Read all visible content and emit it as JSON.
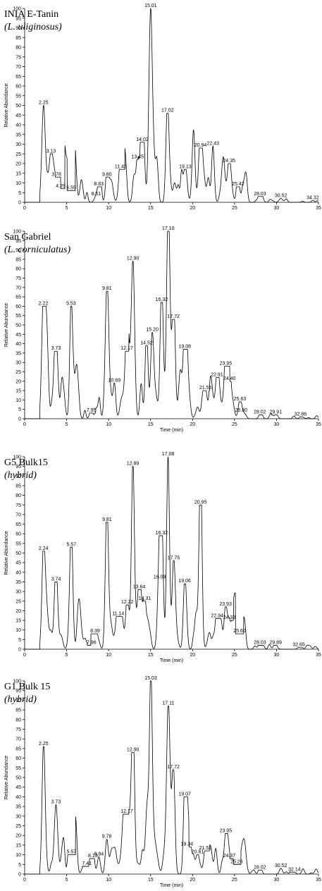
{
  "chart_data": [
    {
      "type": "line",
      "title": "INIA E-Tanin",
      "subtitle": "(L. uliginosus)",
      "ylabel": "Relative Abundance",
      "xlabel": "",
      "xlim": [
        0,
        35
      ],
      "ylim": [
        0,
        100
      ],
      "xticks": [
        "0",
        "5",
        "10",
        "15",
        "20",
        "25",
        "30",
        "35"
      ],
      "yticks": [
        "0",
        "5",
        "10",
        "15",
        "20",
        "25",
        "30",
        "35",
        "40",
        "45",
        "50",
        "55",
        "60",
        "65",
        "70",
        "75",
        "80",
        "85",
        "90",
        "95",
        "100"
      ],
      "peaks": [
        {
          "x": 2.25,
          "y": 50,
          "label": "2.25"
        },
        {
          "x": 3.13,
          "y": 25,
          "label": "3.13"
        },
        {
          "x": 3.78,
          "y": 13,
          "label": "3.78"
        },
        {
          "x": 4.29,
          "y": 7,
          "label": "4.29"
        },
        {
          "x": 5.55,
          "y": 6,
          "label": "5.55"
        },
        {
          "x": 8.51,
          "y": 3,
          "label": "8.51"
        },
        {
          "x": 8.83,
          "y": 8,
          "label": "8.83"
        },
        {
          "x": 9.8,
          "y": 13,
          "label": "9.80"
        },
        {
          "x": 11.45,
          "y": 17,
          "label": "11.45"
        },
        {
          "x": 13.45,
          "y": 22,
          "label": "13.45"
        },
        {
          "x": 14.02,
          "y": 31,
          "label": "14.02"
        },
        {
          "x": 15.01,
          "y": 100,
          "label": "15.01"
        },
        {
          "x": 17.02,
          "y": 46,
          "label": "17.02"
        },
        {
          "x": 19.13,
          "y": 17,
          "label": "19.13"
        },
        {
          "x": 20.94,
          "y": 28,
          "label": "20.94"
        },
        {
          "x": 22.43,
          "y": 29,
          "label": "22.43"
        },
        {
          "x": 24.35,
          "y": 20,
          "label": "24.35"
        },
        {
          "x": 25.42,
          "y": 8,
          "label": "25.42"
        },
        {
          "x": 28.03,
          "y": 3,
          "label": "28.03"
        },
        {
          "x": 30.52,
          "y": 2,
          "label": "30.52"
        },
        {
          "x": 34.32,
          "y": 1,
          "label": "34.32"
        }
      ]
    },
    {
      "type": "line",
      "title": "San Gabriel",
      "subtitle": "(L. corniculatus)",
      "ylabel": "Relative Abundance",
      "xlabel": "Time (min)",
      "xlim": [
        0,
        35
      ],
      "ylim": [
        0,
        100
      ],
      "xticks": [
        "0",
        "5",
        "10",
        "15",
        "20",
        "25",
        "30",
        "35"
      ],
      "yticks": [
        "0",
        "5",
        "10",
        "15",
        "20",
        "25",
        "30",
        "35",
        "40",
        "45",
        "50",
        "55",
        "60",
        "65",
        "70",
        "75",
        "80",
        "85",
        "90",
        "95",
        "100"
      ],
      "peaks": [
        {
          "x": 2.22,
          "y": 60,
          "label": "2.22"
        },
        {
          "x": 3.73,
          "y": 36,
          "label": "3.73"
        },
        {
          "x": 5.53,
          "y": 60,
          "label": "5.53"
        },
        {
          "x": 7.95,
          "y": 3,
          "label": "7.95"
        },
        {
          "x": 9.81,
          "y": 68,
          "label": "9.81"
        },
        {
          "x": 10.69,
          "y": 19,
          "label": "10.69"
        },
        {
          "x": 12.17,
          "y": 36,
          "label": "12.17"
        },
        {
          "x": 12.9,
          "y": 84,
          "label": "12.90"
        },
        {
          "x": 14.52,
          "y": 39,
          "label": "14.52"
        },
        {
          "x": 15.2,
          "y": 46,
          "label": "15.20"
        },
        {
          "x": 16.32,
          "y": 62,
          "label": "16.32"
        },
        {
          "x": 17.1,
          "y": 100,
          "label": "17.10"
        },
        {
          "x": 17.72,
          "y": 53,
          "label": "17.72"
        },
        {
          "x": 19.08,
          "y": 37,
          "label": "19.08"
        },
        {
          "x": 21.55,
          "y": 15,
          "label": "21.55"
        },
        {
          "x": 22.91,
          "y": 22,
          "label": "22.91"
        },
        {
          "x": 23.95,
          "y": 28,
          "label": "23.95"
        },
        {
          "x": 24.4,
          "y": 20,
          "label": "24.40"
        },
        {
          "x": 25.63,
          "y": 9,
          "label": "25.63"
        },
        {
          "x": 25.8,
          "y": 3,
          "label": "25.80"
        },
        {
          "x": 28.02,
          "y": 2,
          "label": "28.02"
        },
        {
          "x": 29.91,
          "y": 2,
          "label": "29.91"
        },
        {
          "x": 32.86,
          "y": 1,
          "label": "32.86"
        }
      ]
    },
    {
      "type": "line",
      "title": "G5 Bulk15",
      "subtitle": "(hybrid)",
      "ylabel": "Relative Abundance",
      "xlabel": "Time (min)",
      "xlim": [
        0,
        35
      ],
      "ylim": [
        0,
        100
      ],
      "xticks": [
        "0",
        "5",
        "10",
        "15",
        "20",
        "25",
        "30",
        "35"
      ],
      "yticks": [
        "0",
        "5",
        "10",
        "15",
        "20",
        "25",
        "30",
        "35",
        "40",
        "45",
        "50",
        "55",
        "60",
        "65",
        "70",
        "75",
        "80",
        "85",
        "90",
        "95",
        "100"
      ],
      "peaks": [
        {
          "x": 2.24,
          "y": 51,
          "label": "2.24"
        },
        {
          "x": 3.74,
          "y": 35,
          "label": "3.74"
        },
        {
          "x": 5.57,
          "y": 53,
          "label": "5.57"
        },
        {
          "x": 7.96,
          "y": 2,
          "label": "7.96"
        },
        {
          "x": 8.39,
          "y": 8,
          "label": "8.39"
        },
        {
          "x": 9.81,
          "y": 66,
          "label": "9.81"
        },
        {
          "x": 11.14,
          "y": 17,
          "label": "11.14"
        },
        {
          "x": 12.22,
          "y": 23,
          "label": "12.22"
        },
        {
          "x": 12.89,
          "y": 95,
          "label": "12.89"
        },
        {
          "x": 13.64,
          "y": 31,
          "label": "13.64"
        },
        {
          "x": 14.31,
          "y": 25,
          "label": "14.31"
        },
        {
          "x": 16.09,
          "y": 36,
          "label": "16.09"
        },
        {
          "x": 16.32,
          "y": 59,
          "label": "16.32"
        },
        {
          "x": 17.08,
          "y": 100,
          "label": "17.08"
        },
        {
          "x": 17.75,
          "y": 46,
          "label": "17.75"
        },
        {
          "x": 19.06,
          "y": 34,
          "label": "19.06"
        },
        {
          "x": 20.95,
          "y": 75,
          "label": "20.95"
        },
        {
          "x": 22.94,
          "y": 16,
          "label": "22.94"
        },
        {
          "x": 23.93,
          "y": 22,
          "label": "23.93"
        },
        {
          "x": 24.38,
          "y": 15,
          "label": "24.38"
        },
        {
          "x": 25.6,
          "y": 8,
          "label": "25.60"
        },
        {
          "x": 28.03,
          "y": 2,
          "label": "28.03"
        },
        {
          "x": 29.89,
          "y": 2,
          "label": "29.89"
        },
        {
          "x": 32.65,
          "y": 1,
          "label": "32.65"
        }
      ]
    },
    {
      "type": "line",
      "title": "G1 Bulk 15",
      "subtitle": "(hybrid)",
      "ylabel": "Relative Abundance",
      "xlabel": "Time (min)",
      "xlim": [
        0,
        35
      ],
      "ylim": [
        0,
        100
      ],
      "xticks": [
        "0",
        "5",
        "10",
        "15",
        "20",
        "25",
        "30",
        "35"
      ],
      "yticks": [
        "0",
        "5",
        "10",
        "15",
        "20",
        "25",
        "30",
        "35",
        "40",
        "45",
        "50",
        "55",
        "60",
        "65",
        "70",
        "75",
        "80",
        "85",
        "90",
        "95",
        "100"
      ],
      "peaks": [
        {
          "x": 2.25,
          "y": 66,
          "label": "2.25"
        },
        {
          "x": 3.73,
          "y": 36,
          "label": "3.73"
        },
        {
          "x": 5.57,
          "y": 10,
          "label": "5.57"
        },
        {
          "x": 7.41,
          "y": 4,
          "label": "7.41"
        },
        {
          "x": 8.13,
          "y": 8,
          "label": "8.13"
        },
        {
          "x": 8.84,
          "y": 9,
          "label": "8.84"
        },
        {
          "x": 9.78,
          "y": 18,
          "label": "9.78"
        },
        {
          "x": 12.17,
          "y": 31,
          "label": "12.17"
        },
        {
          "x": 12.9,
          "y": 63,
          "label": "12.90"
        },
        {
          "x": 15.03,
          "y": 100,
          "label": "15.03"
        },
        {
          "x": 17.11,
          "y": 87,
          "label": "17.11"
        },
        {
          "x": 17.72,
          "y": 54,
          "label": "17.72"
        },
        {
          "x": 19.07,
          "y": 40,
          "label": "19.07"
        },
        {
          "x": 19.34,
          "y": 14,
          "label": "19.34"
        },
        {
          "x": 20.61,
          "y": 10,
          "label": "20.61"
        },
        {
          "x": 21.52,
          "y": 12,
          "label": "21.52"
        },
        {
          "x": 23.95,
          "y": 21,
          "label": "23.95"
        },
        {
          "x": 24.37,
          "y": 8,
          "label": "24.37"
        },
        {
          "x": 25.26,
          "y": 5,
          "label": "25.26"
        },
        {
          "x": 28.02,
          "y": 2,
          "label": "28.02"
        },
        {
          "x": 30.52,
          "y": 3,
          "label": "30.52"
        },
        {
          "x": 32.14,
          "y": 1,
          "label": "32.14"
        }
      ]
    }
  ]
}
